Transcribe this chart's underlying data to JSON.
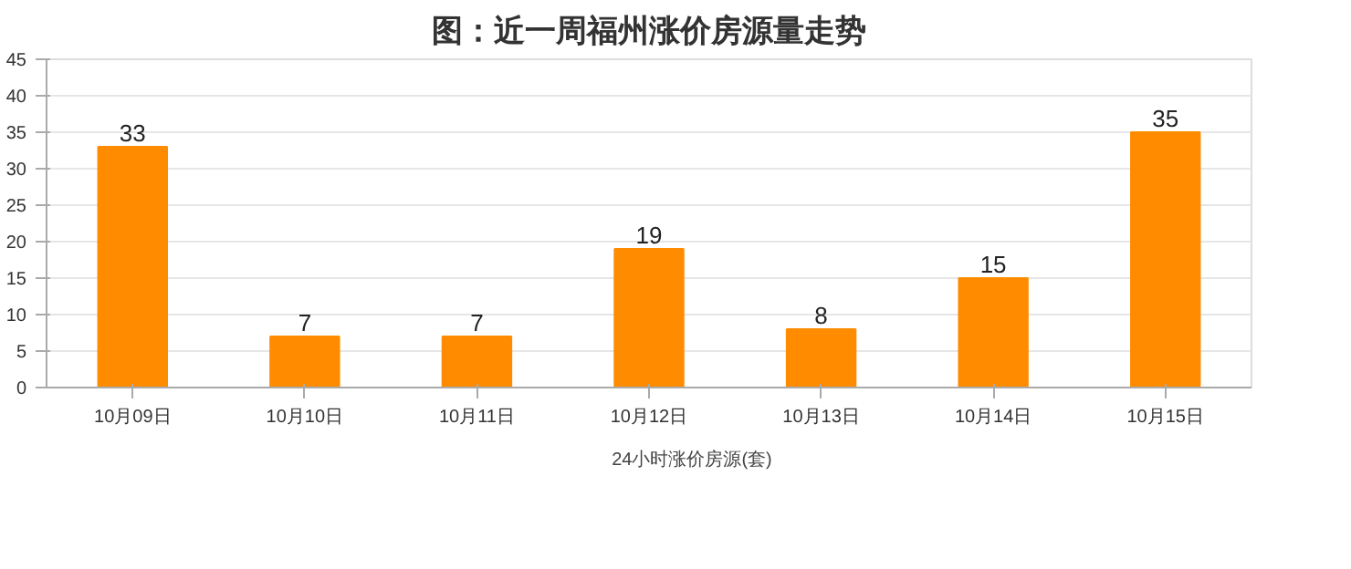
{
  "chart_data": {
    "type": "bar",
    "title": "图：近一周福州涨价房源量走势",
    "categories": [
      "10月09日",
      "10月10日",
      "10月11日",
      "10月12日",
      "10月13日",
      "10月14日",
      "10月15日"
    ],
    "series": [
      {
        "name": "24小时涨价房源(套)",
        "color": "#ff8c00",
        "values": [
          33,
          7,
          7,
          19,
          8,
          15,
          35
        ]
      }
    ],
    "ylim": [
      0,
      45
    ],
    "yticks": [
      0,
      5,
      10,
      15,
      20,
      25,
      30,
      35,
      40,
      45
    ],
    "grid": "y",
    "legend": "bottom",
    "data_labels": true
  }
}
